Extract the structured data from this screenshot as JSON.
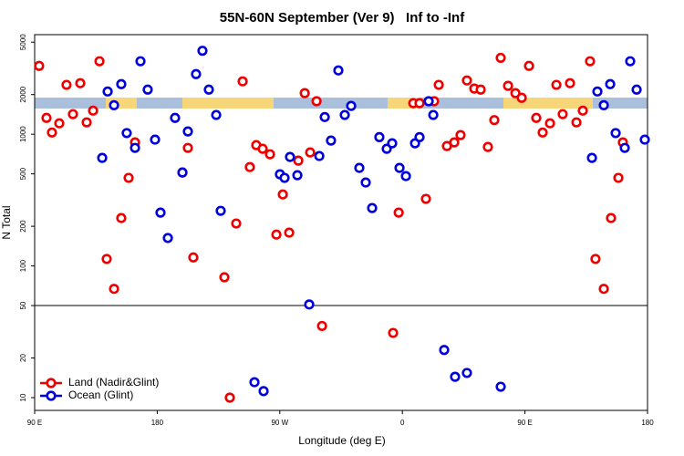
{
  "chart_data": {
    "type": "scatter",
    "title": "55N-60N September (Ver 9)   Inf to -Inf",
    "x_label": "Longitude (deg E)",
    "y_label": "N Total",
    "log_y": true,
    "hline": 50,
    "legend": "lower left",
    "xlim": [
      90,
      540
    ],
    "xticks": [
      {
        "value": 90,
        "label": "90 E"
      },
      {
        "value": 180,
        "label": "180"
      },
      {
        "value": 270,
        "label": "90 W"
      },
      {
        "value": 360,
        "label": "0"
      },
      {
        "value": 450,
        "label": "90 E"
      },
      {
        "value": 540,
        "label": "180"
      }
    ],
    "ylim": [
      8,
      5700
    ],
    "yticks": [
      10,
      20,
      50,
      100,
      200,
      500,
      1000,
      2000,
      5000
    ],
    "series": [
      {
        "name": "Land (Nadir&Glint)",
        "color": "#ee0000",
        "x": [
          93.3,
          98.7,
          102.7,
          108.1,
          113.4,
          118.1,
          123.5,
          128.2,
          132.9,
          137.6,
          142.9,
          148.3,
          153.6,
          159,
          163.7,
          202.5,
          206.5,
          198.5,
          229.3,
          233.3,
          238,
          242.7,
          248,
          252.7,
          257.4,
          262.8,
          267.5,
          272.2,
          276.9,
          283.6,
          288.3,
          292.3,
          297,
          301,
          353.2,
          357.3,
          368,
          372.6,
          377.3,
          383.3,
          386.7,
          392.7,
          398.1,
          402.7,
          407.4,
          412.8,
          417.5,
          422.8,
          427.5,
          432.2,
          437.6,
          443,
          447.6,
          453,
          458.3,
          463,
          468.4,
          473.1,
          477.7,
          483.1,
          487.8,
          492.5,
          497.8,
          501.8,
          507.9,
          513.2,
          518.6,
          521.9
        ],
        "values": [
          3300,
          1330,
          1030,
          1210,
          2370,
          1420,
          2440,
          1230,
          1510,
          3580,
          113,
          67,
          231,
          466,
          867,
          787,
          116,
          512,
          82,
          10,
          210,
          2520,
          563,
          826,
          775,
          704,
          173,
          349,
          179,
          630,
          2050,
          727,
          1780,
          35,
          31,
          254,
          1720,
          1720,
          323,
          1780,
          2370,
          813,
          867,
          985,
          2560,
          2220,
          2180,
          800,
          1280,
          3800,
          2330,
          2050,
          1890,
          3300,
          1330,
          1030,
          1210,
          2370,
          1420,
          2440,
          1230,
          1510,
          3580,
          113,
          67,
          231,
          466,
          867
        ]
      },
      {
        "name": "Ocean (Glint)",
        "color": "#0000dd",
        "x": [
          139.6,
          143.6,
          148.3,
          153.6,
          157.6,
          163.7,
          167.7,
          173,
          178.4,
          182.4,
          187.8,
          193.1,
          198.5,
          202.5,
          208.5,
          213.2,
          217.9,
          223.3,
          226.6,
          251.4,
          258.1,
          270.1,
          273.5,
          277.5,
          282.9,
          291.6,
          299,
          303,
          307.6,
          313,
          317.7,
          322.4,
          328.4,
          333.1,
          337.8,
          343.1,
          348.5,
          352.5,
          357.9,
          362.6,
          369.3,
          372.6,
          379.3,
          382.7,
          390.7,
          398.7,
          407.4,
          432.2,
          499.2,
          503.2,
          507.9,
          512.6,
          516.6,
          523.3,
          527.3,
          532,
          538
        ],
        "values": [
          661,
          2110,
          1660,
          2400,
          1020,
          787,
          3580,
          2180,
          910,
          254,
          163,
          1330,
          512,
          1050,
          2860,
          4300,
          2180,
          1400,
          262,
          13.1,
          11.2,
          496,
          466,
          672,
          488,
          51,
          683,
          1350,
          895,
          3050,
          1400,
          1640,
          555,
          430,
          275,
          950,
          775,
          853,
          555,
          481,
          853,
          950,
          1780,
          1400,
          23,
          14.4,
          15.4,
          12.1,
          661,
          2110,
          1660,
          2400,
          1020,
          787,
          3580,
          2180,
          910
        ]
      }
    ]
  }
}
